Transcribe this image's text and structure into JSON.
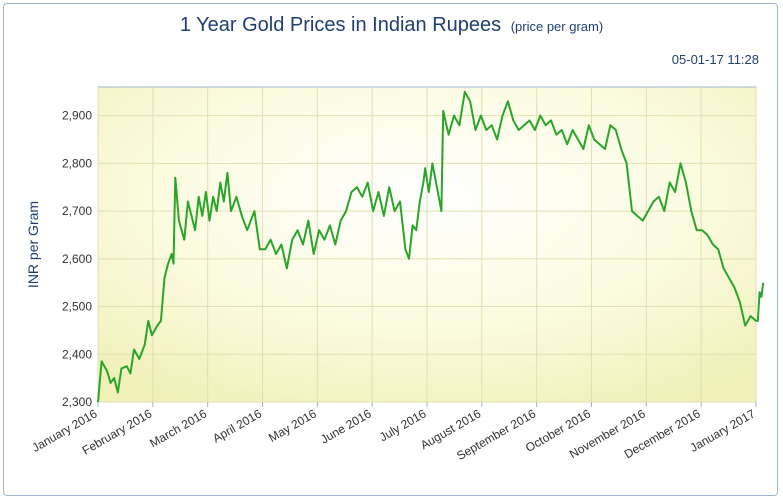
{
  "chart_data": {
    "type": "line",
    "title": "1 Year Gold Prices in Indian Rupees",
    "subtitle": "(price per gram)",
    "timestamp": "05-01-17 11:28",
    "xlabel": "",
    "ylabel": "INR per Gram",
    "ylim": [
      2300,
      2960
    ],
    "yticks": [
      2300,
      2400,
      2500,
      2600,
      2700,
      2800,
      2900
    ],
    "ytick_labels": [
      "2,300",
      "2,400",
      "2,500",
      "2,600",
      "2,700",
      "2,800",
      "2,900"
    ],
    "xticks": [
      "January 2016",
      "February 2016",
      "March 2016",
      "April 2016",
      "May 2016",
      "June 2016",
      "July 2016",
      "August 2016",
      "September 2016",
      "October 2016",
      "November 2016",
      "December 2016",
      "January 2017"
    ],
    "grid": true,
    "line_color": "#2aa52a",
    "series": [
      {
        "values": [
          [
            "2016-01-01",
            2300
          ],
          [
            "2016-01-03",
            2385
          ],
          [
            "2016-01-06",
            2365
          ],
          [
            "2016-01-08",
            2340
          ],
          [
            "2016-01-10",
            2350
          ],
          [
            "2016-01-12",
            2320
          ],
          [
            "2016-01-14",
            2370
          ],
          [
            "2016-01-17",
            2375
          ],
          [
            "2016-01-19",
            2360
          ],
          [
            "2016-01-21",
            2410
          ],
          [
            "2016-01-24",
            2390
          ],
          [
            "2016-01-27",
            2420
          ],
          [
            "2016-01-29",
            2470
          ],
          [
            "2016-01-31",
            2440
          ],
          [
            "2016-02-03",
            2460
          ],
          [
            "2016-02-05",
            2470
          ],
          [
            "2016-02-07",
            2560
          ],
          [
            "2016-02-09",
            2590
          ],
          [
            "2016-02-11",
            2610
          ],
          [
            "2016-02-12",
            2590
          ],
          [
            "2016-02-13",
            2770
          ],
          [
            "2016-02-15",
            2680
          ],
          [
            "2016-02-18",
            2640
          ],
          [
            "2016-02-20",
            2720
          ],
          [
            "2016-02-22",
            2690
          ],
          [
            "2016-02-24",
            2660
          ],
          [
            "2016-02-26",
            2730
          ],
          [
            "2016-02-28",
            2690
          ],
          [
            "2016-03-01",
            2740
          ],
          [
            "2016-03-03",
            2680
          ],
          [
            "2016-03-05",
            2730
          ],
          [
            "2016-03-07",
            2700
          ],
          [
            "2016-03-09",
            2760
          ],
          [
            "2016-03-11",
            2720
          ],
          [
            "2016-03-13",
            2780
          ],
          [
            "2016-03-15",
            2700
          ],
          [
            "2016-03-18",
            2730
          ],
          [
            "2016-03-21",
            2690
          ],
          [
            "2016-03-24",
            2660
          ],
          [
            "2016-03-28",
            2700
          ],
          [
            "2016-03-31",
            2620
          ],
          [
            "2016-04-03",
            2620
          ],
          [
            "2016-04-06",
            2640
          ],
          [
            "2016-04-09",
            2610
          ],
          [
            "2016-04-12",
            2630
          ],
          [
            "2016-04-15",
            2580
          ],
          [
            "2016-04-18",
            2640
          ],
          [
            "2016-04-21",
            2660
          ],
          [
            "2016-04-24",
            2630
          ],
          [
            "2016-04-27",
            2680
          ],
          [
            "2016-04-30",
            2610
          ],
          [
            "2016-05-03",
            2660
          ],
          [
            "2016-05-06",
            2640
          ],
          [
            "2016-05-09",
            2670
          ],
          [
            "2016-05-12",
            2630
          ],
          [
            "2016-05-15",
            2680
          ],
          [
            "2016-05-18",
            2700
          ],
          [
            "2016-05-21",
            2740
          ],
          [
            "2016-05-24",
            2750
          ],
          [
            "2016-05-27",
            2730
          ],
          [
            "2016-05-30",
            2760
          ],
          [
            "2016-06-02",
            2700
          ],
          [
            "2016-06-05",
            2740
          ],
          [
            "2016-06-08",
            2690
          ],
          [
            "2016-06-11",
            2750
          ],
          [
            "2016-06-14",
            2700
          ],
          [
            "2016-06-17",
            2720
          ],
          [
            "2016-06-20",
            2620
          ],
          [
            "2016-06-22",
            2600
          ],
          [
            "2016-06-24",
            2670
          ],
          [
            "2016-06-26",
            2660
          ],
          [
            "2016-06-28",
            2720
          ],
          [
            "2016-06-30",
            2760
          ],
          [
            "2016-07-01",
            2790
          ],
          [
            "2016-07-03",
            2740
          ],
          [
            "2016-07-05",
            2800
          ],
          [
            "2016-07-08",
            2740
          ],
          [
            "2016-07-10",
            2700
          ],
          [
            "2016-07-11",
            2910
          ],
          [
            "2016-07-14",
            2860
          ],
          [
            "2016-07-17",
            2900
          ],
          [
            "2016-07-20",
            2880
          ],
          [
            "2016-07-23",
            2950
          ],
          [
            "2016-07-26",
            2930
          ],
          [
            "2016-07-29",
            2870
          ],
          [
            "2016-08-01",
            2900
          ],
          [
            "2016-08-04",
            2870
          ],
          [
            "2016-08-07",
            2880
          ],
          [
            "2016-08-10",
            2850
          ],
          [
            "2016-08-13",
            2900
          ],
          [
            "2016-08-16",
            2930
          ],
          [
            "2016-08-19",
            2890
          ],
          [
            "2016-08-22",
            2870
          ],
          [
            "2016-08-25",
            2880
          ],
          [
            "2016-08-28",
            2890
          ],
          [
            "2016-08-31",
            2870
          ],
          [
            "2016-09-03",
            2900
          ],
          [
            "2016-09-06",
            2880
          ],
          [
            "2016-09-09",
            2890
          ],
          [
            "2016-09-12",
            2860
          ],
          [
            "2016-09-15",
            2870
          ],
          [
            "2016-09-18",
            2840
          ],
          [
            "2016-09-21",
            2870
          ],
          [
            "2016-09-24",
            2850
          ],
          [
            "2016-09-27",
            2830
          ],
          [
            "2016-09-30",
            2880
          ],
          [
            "2016-10-03",
            2850
          ],
          [
            "2016-10-06",
            2840
          ],
          [
            "2016-10-09",
            2830
          ],
          [
            "2016-10-12",
            2880
          ],
          [
            "2016-10-15",
            2870
          ],
          [
            "2016-10-18",
            2830
          ],
          [
            "2016-10-21",
            2800
          ],
          [
            "2016-10-24",
            2700
          ],
          [
            "2016-10-27",
            2690
          ],
          [
            "2016-10-30",
            2680
          ],
          [
            "2016-11-02",
            2700
          ],
          [
            "2016-11-05",
            2720
          ],
          [
            "2016-11-08",
            2730
          ],
          [
            "2016-11-11",
            2700
          ],
          [
            "2016-11-14",
            2760
          ],
          [
            "2016-11-17",
            2740
          ],
          [
            "2016-11-20",
            2800
          ],
          [
            "2016-11-23",
            2760
          ],
          [
            "2016-11-26",
            2700
          ],
          [
            "2016-11-29",
            2660
          ],
          [
            "2016-12-02",
            2660
          ],
          [
            "2016-12-05",
            2650
          ],
          [
            "2016-12-08",
            2630
          ],
          [
            "2016-12-11",
            2620
          ],
          [
            "2016-12-14",
            2580
          ],
          [
            "2016-12-17",
            2560
          ],
          [
            "2016-12-20",
            2540
          ],
          [
            "2016-12-23",
            2510
          ],
          [
            "2016-12-26",
            2460
          ],
          [
            "2016-12-29",
            2480
          ],
          [
            "2017-01-01",
            2470
          ],
          [
            "2017-01-02",
            2470
          ],
          [
            "2017-01-03",
            2530
          ],
          [
            "2017-01-04",
            2520
          ],
          [
            "2017-01-05",
            2550
          ]
        ]
      }
    ]
  }
}
